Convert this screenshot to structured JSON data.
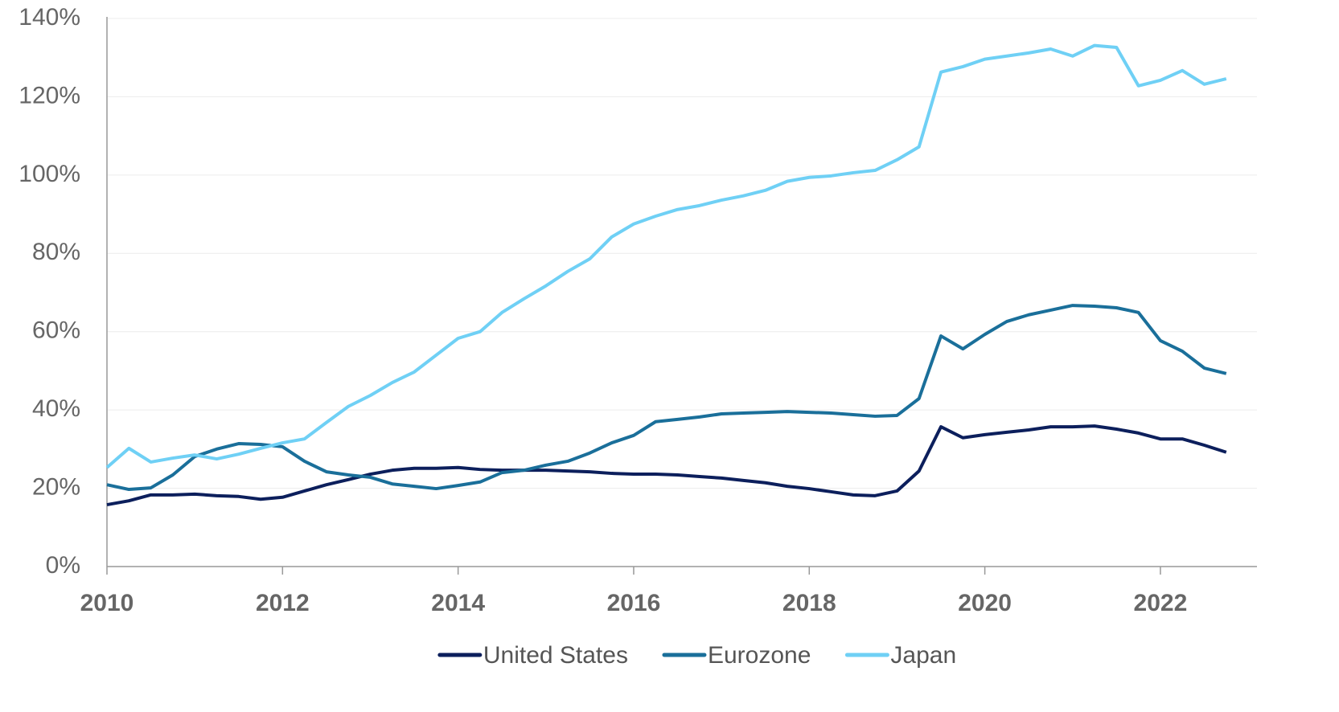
{
  "chart_data": {
    "type": "line",
    "x": [
      2010,
      2010.25,
      2010.5,
      2010.75,
      2011,
      2011.25,
      2011.5,
      2011.75,
      2012,
      2012.25,
      2012.5,
      2012.75,
      2013,
      2013.25,
      2013.5,
      2013.75,
      2014,
      2014.25,
      2014.5,
      2014.75,
      2015,
      2015.25,
      2015.5,
      2015.75,
      2016,
      2016.25,
      2016.5,
      2016.75,
      2017,
      2017.25,
      2017.5,
      2017.75,
      2018,
      2018.25,
      2018.5,
      2018.75,
      2019,
      2019.25,
      2019.5,
      2019.75,
      2020,
      2020.25,
      2020.5,
      2020.75,
      2021,
      2021.25,
      2021.5,
      2021.75,
      2022,
      2022.25,
      2022.5,
      2022.75
    ],
    "series": [
      {
        "name": "United States",
        "color": "#0c1f5c",
        "values": [
          15.8,
          16.8,
          18.3,
          18.3,
          18.5,
          18.1,
          17.9,
          17.2,
          17.7,
          19.3,
          20.9,
          22.2,
          23.6,
          24.6,
          25.1,
          25.1,
          25.3,
          24.8,
          24.6,
          24.6,
          24.6,
          24.4,
          24.2,
          23.8,
          23.6,
          23.6,
          23.4,
          23.0,
          22.6,
          22.0,
          21.4,
          20.5,
          19.9,
          19.1,
          18.3,
          18.1,
          19.3,
          24.4,
          35.7,
          32.9,
          33.7,
          34.3,
          34.9,
          35.7,
          35.7,
          35.9,
          35.1,
          34.1,
          32.6,
          32.6,
          31.0,
          29.2
        ]
      },
      {
        "name": "Eurozone",
        "color": "#1a6f9a",
        "values": [
          20.9,
          19.7,
          20.1,
          23.4,
          28.1,
          30.0,
          31.4,
          31.2,
          30.6,
          26.9,
          24.2,
          23.4,
          22.8,
          21.1,
          20.5,
          19.9,
          20.7,
          21.6,
          24.0,
          24.6,
          25.9,
          26.9,
          29.0,
          31.6,
          33.5,
          37.0,
          37.6,
          38.2,
          39.0,
          39.2,
          39.4,
          39.6,
          39.4,
          39.2,
          38.8,
          38.4,
          38.6,
          42.9,
          58.9,
          55.6,
          59.3,
          62.6,
          64.3,
          65.5,
          66.7,
          66.5,
          66.1,
          64.9,
          57.7,
          55.0,
          50.7,
          49.3
        ]
      },
      {
        "name": "Japan",
        "color": "#6fd0f5",
        "values": [
          25.3,
          30.2,
          26.7,
          27.7,
          28.5,
          27.5,
          28.7,
          30.2,
          31.6,
          32.6,
          36.8,
          40.9,
          43.7,
          47.0,
          49.7,
          54.0,
          58.3,
          60.0,
          64.9,
          68.4,
          71.7,
          75.4,
          78.6,
          84.2,
          87.5,
          89.5,
          91.2,
          92.2,
          93.6,
          94.7,
          96.1,
          98.4,
          99.4,
          99.8,
          100.6,
          101.2,
          103.9,
          107.2,
          126.3,
          127.7,
          129.6,
          130.4,
          131.2,
          132.2,
          130.4,
          133.1,
          132.6,
          122.8,
          124.2,
          126.7,
          123.2,
          124.6
        ]
      }
    ],
    "xlim": [
      2010,
      2023.1
    ],
    "xticks": [
      2010,
      2012,
      2014,
      2016,
      2018,
      2020,
      2022
    ],
    "ylim": [
      0,
      140
    ],
    "yticks": [
      {
        "value": 0,
        "label": "0%"
      },
      {
        "value": 20,
        "label": "20%"
      },
      {
        "value": 40,
        "label": "40%"
      },
      {
        "value": 60,
        "label": "60%"
      },
      {
        "value": 80,
        "label": "80%"
      },
      {
        "value": 100,
        "label": "100%"
      },
      {
        "value": 120,
        "label": "120%"
      },
      {
        "value": 140,
        "label": "140%"
      }
    ],
    "grid": true,
    "legend": "bottom"
  }
}
